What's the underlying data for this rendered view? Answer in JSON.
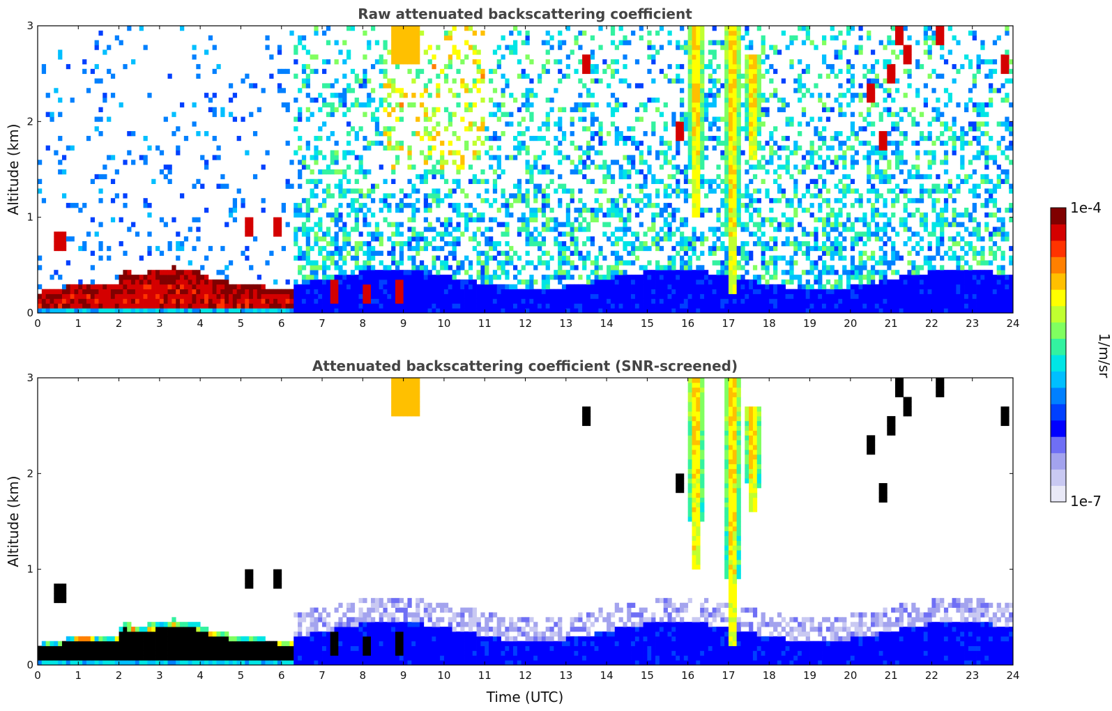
{
  "colors": {
    "colormap": [
      "#e9e9f7",
      "#c9c9f2",
      "#a3a3ee",
      "#6f6ff5",
      "#0000ff",
      "#0040ff",
      "#0080ff",
      "#00bfff",
      "#00e5e5",
      "#33f2a0",
      "#80ff60",
      "#c0ff30",
      "#ffff00",
      "#ffc000",
      "#ff8000",
      "#ff3300",
      "#d40000",
      "#800000"
    ],
    "saturated_screened": "#000000"
  },
  "chart_data": [
    {
      "type": "heatmap",
      "title": "Raw attenuated backscattering coefficient",
      "xlabel": "",
      "ylabel": "Altitude (km)",
      "xlim": [
        0,
        24
      ],
      "ylim": [
        0,
        3
      ],
      "xticks": [
        "0",
        "1",
        "2",
        "3",
        "4",
        "5",
        "6",
        "7",
        "8",
        "9",
        "10",
        "11",
        "12",
        "13",
        "14",
        "15",
        "16",
        "17",
        "18",
        "19",
        "20",
        "21",
        "22",
        "23",
        "24"
      ],
      "yticks": [
        "0",
        "1",
        "2",
        "3"
      ],
      "features": {
        "boundary_layer_top_km": [
          [
            0,
            0.22
          ],
          [
            0.5,
            0.25
          ],
          [
            1,
            0.32
          ],
          [
            1.5,
            0.3
          ],
          [
            1.9,
            0.28
          ],
          [
            2.1,
            0.45
          ],
          [
            2.5,
            0.4
          ],
          [
            3,
            0.45
          ],
          [
            3.3,
            0.48
          ],
          [
            3.8,
            0.46
          ],
          [
            4.2,
            0.38
          ],
          [
            4.6,
            0.33
          ],
          [
            5,
            0.3
          ],
          [
            5.5,
            0.28
          ],
          [
            6.2,
            0.25
          ]
        ],
        "instrument_change_hour": 6.3,
        "low_clouds": [
          [
            0.55,
            0.75
          ],
          [
            5.2,
            0.9
          ],
          [
            5.9,
            0.9
          ],
          [
            7.3,
            0.22
          ],
          [
            8.1,
            0.2
          ],
          [
            8.9,
            0.22
          ]
        ],
        "elevated_clouds": [
          [
            13.5,
            2.6
          ],
          [
            15.8,
            1.9
          ],
          [
            20.5,
            2.3
          ],
          [
            20.8,
            1.8
          ],
          [
            21.0,
            2.5
          ],
          [
            21.2,
            2.9
          ],
          [
            21.4,
            2.7
          ],
          [
            22.2,
            2.9
          ],
          [
            23.8,
            2.6
          ]
        ],
        "plumes": [
          [
            16.2,
            1.0,
            3.0
          ],
          [
            17.1,
            0.2,
            3.0
          ],
          [
            17.6,
            1.6,
            2.7
          ]
        ]
      }
    },
    {
      "type": "heatmap",
      "title": "Attenuated backscattering coefficient (SNR-screened)",
      "xlabel": "Time (UTC)",
      "ylabel": "Altitude (km)",
      "xlim": [
        0,
        24
      ],
      "ylim": [
        0,
        3
      ],
      "xticks": [
        "0",
        "1",
        "2",
        "3",
        "4",
        "5",
        "6",
        "7",
        "8",
        "9",
        "10",
        "11",
        "12",
        "13",
        "14",
        "15",
        "16",
        "17",
        "18",
        "19",
        "20",
        "21",
        "22",
        "23",
        "24"
      ],
      "yticks": [
        "0",
        "1",
        "2",
        "3"
      ]
    }
  ],
  "colorbar": {
    "label": "1/m/sr",
    "max_label": "1e-4",
    "min_label": "1e-7",
    "scale": "log",
    "range": [
      1e-07,
      0.0001
    ]
  }
}
